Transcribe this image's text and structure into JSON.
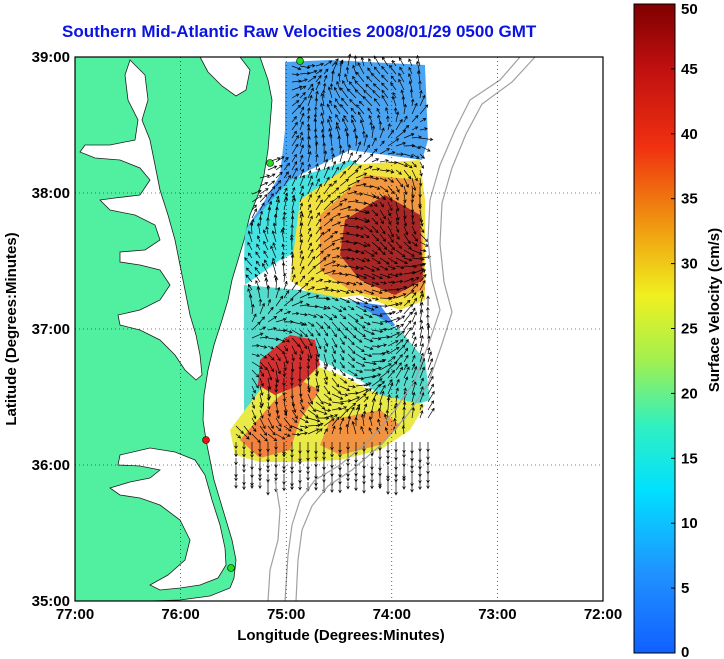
{
  "title": "Southern Mid-Atlantic Raw Velocities 2008/01/29 0500 GMT",
  "axes": {
    "xlabel": "Longitude (Degrees:Minutes)",
    "ylabel": "Latitude (Degrees:Minutes)",
    "xticks": [
      "77:00",
      "76:00",
      "75:00",
      "74:00",
      "73:00",
      "72:00"
    ],
    "yticks": [
      "39:00",
      "38:00",
      "37:00",
      "36:00",
      "35:00"
    ],
    "xlim": [
      -77,
      -72
    ],
    "ylim": [
      35,
      39
    ],
    "grid": "dotted"
  },
  "colorbar": {
    "label": "Surface Velocity (cm/s)",
    "ticks": [
      "50",
      "45",
      "40",
      "35",
      "30",
      "25",
      "20",
      "15",
      "10",
      "5",
      "0"
    ],
    "range": [
      0,
      50
    ],
    "colormap": "jet"
  },
  "colors": {
    "land": "#50f0a0",
    "title": "#0a14e0",
    "isobath": "#a0a0a0",
    "station_green": "#22dd22",
    "station_red": "#ee1111"
  }
}
